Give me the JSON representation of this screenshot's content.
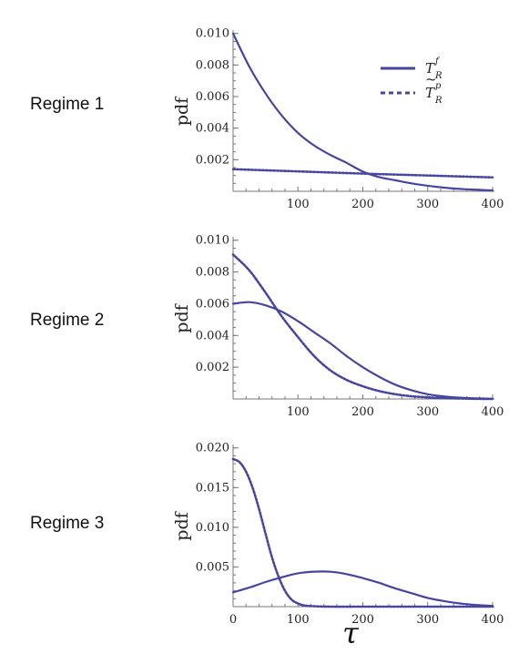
{
  "colors": {
    "series": "#4646a0",
    "axis": "#777777",
    "text": "#222222"
  },
  "legend": {
    "items": [
      {
        "main": "T",
        "sub": "R",
        "sup": "f",
        "tilde": false,
        "style": "solid"
      },
      {
        "main": "T",
        "sub": "R",
        "sup": "p",
        "tilde": true,
        "style": "dotted"
      }
    ]
  },
  "xlabel": "τ",
  "chart_data": [
    {
      "type": "line",
      "label": "Regime 1",
      "ylabel": "pdf",
      "xlim": [
        0,
        400
      ],
      "ylim": [
        0,
        0.0101
      ],
      "x_ticks": [
        "100",
        "200",
        "300",
        "400"
      ],
      "y_ticks": [
        "0.002",
        "0.004",
        "0.006",
        "0.008",
        "0.010"
      ],
      "series": [
        {
          "name": "T_R^f",
          "style": "solid",
          "x": [
            0,
            25,
            50,
            75,
            100,
            125,
            150,
            175,
            200,
            225,
            250,
            275,
            300,
            325,
            350,
            375,
            400
          ],
          "y": [
            0.01,
            0.0079,
            0.0062,
            0.0048,
            0.0037,
            0.0029,
            0.0023,
            0.0018,
            0.00125,
            0.0009,
            0.0007,
            0.0005,
            0.00035,
            0.00023,
            0.00015,
            0.0001,
            5e-05
          ]
        },
        {
          "name": "T̃_R^p",
          "style": "dotted",
          "x": [
            0,
            50,
            100,
            150,
            200,
            250,
            300,
            350,
            400
          ],
          "y": [
            0.0014,
            0.00133,
            0.00126,
            0.00119,
            0.00112,
            0.00106,
            0.001,
            0.00094,
            0.00088
          ]
        }
      ]
    },
    {
      "type": "line",
      "label": "Regime 2",
      "ylabel": "pdf",
      "xlim": [
        0,
        400
      ],
      "ylim": [
        0,
        0.0101
      ],
      "x_ticks": [
        "100",
        "200",
        "300",
        "400"
      ],
      "y_ticks": [
        "0.002",
        "0.004",
        "0.006",
        "0.008",
        "0.010"
      ],
      "series": [
        {
          "name": "T_R^f",
          "style": "solid",
          "x": [
            0,
            25,
            50,
            75,
            100,
            125,
            150,
            175,
            200,
            225,
            250,
            275,
            300,
            325,
            350,
            375,
            400
          ],
          "y": [
            0.006,
            0.0061,
            0.0059,
            0.0055,
            0.0049,
            0.0042,
            0.0035,
            0.0027,
            0.002,
            0.0014,
            0.0009,
            0.00055,
            0.0003,
            0.00016,
            8e-05,
            4e-05,
            1e-05
          ]
        },
        {
          "name": "T̃_R^p",
          "style": "dotted",
          "x": [
            0,
            25,
            50,
            75,
            100,
            125,
            150,
            175,
            200,
            225,
            250,
            275,
            300,
            325,
            350,
            375,
            400
          ],
          "y": [
            0.0091,
            0.0081,
            0.0067,
            0.0052,
            0.0039,
            0.0027,
            0.0018,
            0.0012,
            0.0008,
            0.0005,
            0.0003,
            0.00017,
            0.0001,
            5e-05,
            3e-05,
            1e-05,
            0.0
          ]
        }
      ]
    },
    {
      "type": "line",
      "label": "Regime 3",
      "ylabel": "pdf",
      "xlim": [
        0,
        400
      ],
      "ylim": [
        0,
        0.0202
      ],
      "x_ticks": [
        "0",
        "100",
        "200",
        "300",
        "400"
      ],
      "y_ticks": [
        "0.005",
        "0.010",
        "0.015",
        "0.020"
      ],
      "series": [
        {
          "name": "T_R^f",
          "style": "solid",
          "x": [
            0,
            25,
            50,
            75,
            100,
            125,
            150,
            175,
            200,
            225,
            250,
            275,
            300,
            325,
            350,
            375,
            400
          ],
          "y": [
            0.0018,
            0.0024,
            0.0031,
            0.0037,
            0.0042,
            0.0044,
            0.0044,
            0.0041,
            0.0036,
            0.003,
            0.0023,
            0.0017,
            0.0011,
            0.0007,
            0.0004,
            0.0002,
            0.0001
          ]
        },
        {
          "name": "T̃_R^p",
          "style": "dotted",
          "x": [
            0,
            10,
            20,
            30,
            40,
            50,
            60,
            70,
            80,
            90,
            100,
            110,
            125,
            150,
            200,
            250,
            300,
            350,
            400
          ],
          "y": [
            0.0186,
            0.0182,
            0.017,
            0.015,
            0.0123,
            0.0092,
            0.0062,
            0.0038,
            0.002,
            0.0009,
            0.0004,
            0.00015,
            5e-05,
            0.0,
            0.0,
            0.0,
            0.0,
            0.0,
            0.0
          ]
        }
      ]
    }
  ]
}
